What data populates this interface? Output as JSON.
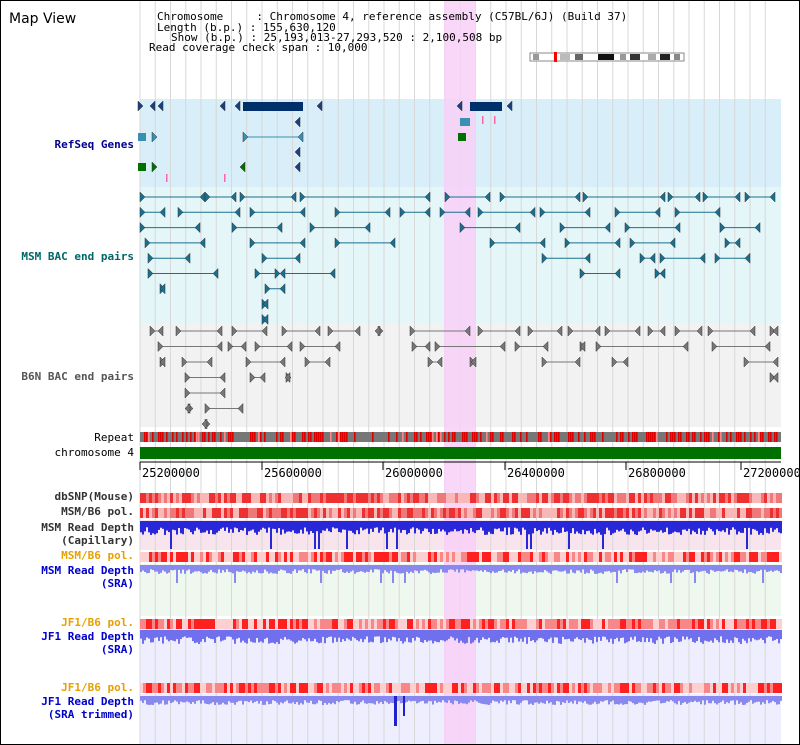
{
  "title": "Map View",
  "info": {
    "chromosome": "Chromosome     : Chromosome 4, reference assembly (C57BL/6J) (Build 37)",
    "length": "Length (b.p.) : 155,630,120",
    "show": "Show (b.p.) : 25,193,013-27,293,520 : 2,100,508 bp",
    "coverage": "Read coverage check span : 10,000"
  },
  "tracks": {
    "refseq": "RefSeq Genes",
    "msm_bac": "MSM BAC end pairs",
    "b6n_bac": "B6N BAC end pairs",
    "repeat": "Repeat",
    "chromosome": "chromosome 4",
    "dbsnp": "dbSNP(Mouse)",
    "msm_pol1": "MSM/B6 pol.",
    "msm_depth_cap_1": "MSM Read Depth",
    "msm_depth_cap_2": "(Capillary)",
    "msm_pol2": "MSM/B6 pol.",
    "msm_depth_sra_1": "MSM Read Depth",
    "msm_depth_sra_2": "(SRA)",
    "jf1_pol1": "JF1/B6 pol.",
    "jf1_depth_1": "JF1 Read Depth",
    "jf1_depth_2": "(SRA)",
    "jf1_pol2": "JF1/B6 pol.",
    "jf1_trim_1": "JF1 Read Depth",
    "jf1_trim_2": "(SRA trimmed)"
  },
  "axis_ticks": [
    "25200000",
    "25600000",
    "26000000",
    "26400000",
    "26800000",
    "27200000"
  ],
  "colors": {
    "refseq_label": "#00008b",
    "msm_label": "#006666",
    "b6n_label": "#555555",
    "pol_orange": "#e8a000",
    "depth_blue": "#0000cc",
    "highlight": "#f8d0f8"
  }
}
